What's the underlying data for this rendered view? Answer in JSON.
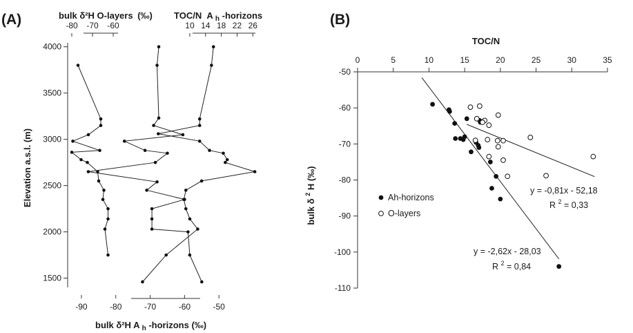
{
  "chart_data": [
    {
      "type": "line",
      "panel_label": "(A)",
      "ylabel": "Elevation a.s.l. (m)",
      "ylim": [
        1400,
        4050
      ],
      "yticks": [
        1500,
        2000,
        2500,
        3000,
        3500,
        4000
      ],
      "axes": {
        "top_left": {
          "title_prefix": "bulk δ²H O-layers",
          "title_unit": "(‰)",
          "ticks": [
            -80,
            -70,
            -60
          ],
          "range": [
            -83,
            -51
          ]
        },
        "top_right": {
          "title_prefix": "TOC/N",
          "title_sub_main": "A",
          "title_sub": "h",
          "title_suffix": "-horizons",
          "ticks": [
            10,
            14,
            18,
            22,
            26
          ],
          "range": [
            -21,
            27
          ]
        },
        "bottom": {
          "title_prefix": "bulk δ²H A",
          "title_sub": "h",
          "title_suffix": "-horizons (‰)",
          "ticks": [
            -90,
            -80,
            -70,
            -60,
            -50
          ],
          "range": [
            -94,
            -39
          ]
        }
      },
      "series": [
        {
          "axis": "top_left",
          "points": [
            {
              "x": -77,
              "y": 3800
            },
            {
              "x": -66,
              "y": 3220
            },
            {
              "x": -66,
              "y": 3150
            },
            {
              "x": -72,
              "y": 3050
            },
            {
              "x": -79.5,
              "y": 2980
            },
            {
              "x": -66.5,
              "y": 2880
            },
            {
              "x": -80,
              "y": 2860
            },
            {
              "x": -75.5,
              "y": 2780
            },
            {
              "x": -72.5,
              "y": 2750
            },
            {
              "x": -67.5,
              "y": 2650
            },
            {
              "x": -67,
              "y": 2550
            },
            {
              "x": -64.5,
              "y": 2450
            },
            {
              "x": -65,
              "y": 2350
            },
            {
              "x": -62.5,
              "y": 2250
            },
            {
              "x": -62.5,
              "y": 2140
            },
            {
              "x": -64,
              "y": 2030
            },
            {
              "x": -62.5,
              "y": 1750
            }
          ]
        },
        {
          "axis": "bottom",
          "points": [
            {
              "x": -55,
              "y": 1460
            },
            {
              "x": -58.5,
              "y": 1750
            },
            {
              "x": -59,
              "y": 2000
            },
            {
              "x": -69.5,
              "y": 2030
            },
            {
              "x": -69.5,
              "y": 2140
            },
            {
              "x": -69.5,
              "y": 2250
            },
            {
              "x": -60,
              "y": 2350
            },
            {
              "x": -71,
              "y": 2450
            },
            {
              "x": -68,
              "y": 2540
            },
            {
              "x": -88,
              "y": 2650
            },
            {
              "x": -68.5,
              "y": 2750
            },
            {
              "x": -65,
              "y": 2850
            },
            {
              "x": -71.5,
              "y": 2880
            },
            {
              "x": -77.5,
              "y": 2980
            },
            {
              "x": -60.5,
              "y": 3050
            },
            {
              "x": -69,
              "y": 3150
            },
            {
              "x": -67.5,
              "y": 3230
            },
            {
              "x": -68,
              "y": 3800
            },
            {
              "x": -67.5,
              "y": 4000
            }
          ]
        },
        {
          "axis": "top_right",
          "points": [
            {
              "x": 16,
              "y": 4000
            },
            {
              "x": 15.5,
              "y": 3800
            },
            {
              "x": 12.5,
              "y": 3220
            },
            {
              "x": 12.5,
              "y": 3150
            },
            {
              "x": 2,
              "y": 3060
            },
            {
              "x": 12.5,
              "y": 2980
            },
            {
              "x": 15,
              "y": 2880
            },
            {
              "x": 18.5,
              "y": 2850
            },
            {
              "x": 19.5,
              "y": 2780
            },
            {
              "x": 19,
              "y": 2750
            },
            {
              "x": 26.5,
              "y": 2650
            },
            {
              "x": 13,
              "y": 2550
            },
            {
              "x": 9,
              "y": 2450
            },
            {
              "x": 8.5,
              "y": 2350
            },
            {
              "x": 9,
              "y": 2250
            },
            {
              "x": 10,
              "y": 2140
            },
            {
              "x": 12,
              "y": 2030
            },
            {
              "x": 4,
              "y": 1750
            },
            {
              "x": -2,
              "y": 1460
            }
          ]
        }
      ]
    },
    {
      "type": "scatter",
      "panel_label": "(B)",
      "xlabel": "TOC/N",
      "ylabel_prefix": "bulk δ",
      "ylabel_sup": "2",
      "ylabel_suffix": "H (‰)",
      "xlim": [
        0,
        35
      ],
      "ylim": [
        -110,
        -50
      ],
      "xticks": [
        0,
        5,
        10,
        15,
        20,
        25,
        30,
        35
      ],
      "yticks": [
        -50,
        -60,
        -70,
        -80,
        -90,
        -100,
        -110
      ],
      "series": [
        {
          "name": "Ah-horizons",
          "marker": "filled",
          "points": [
            [
              10.5,
              -59
            ],
            [
              12.8,
              -60.5
            ],
            [
              12.9,
              -61
            ],
            [
              13.6,
              -64.3
            ],
            [
              13.7,
              -68.5
            ],
            [
              14.4,
              -68.5
            ],
            [
              14.8,
              -68.8
            ],
            [
              15,
              -68
            ],
            [
              15.3,
              -63
            ],
            [
              15.9,
              -72.2
            ],
            [
              16.6,
              -69.6
            ],
            [
              16.9,
              -70.4
            ],
            [
              17,
              -71
            ],
            [
              17.1,
              -63.5
            ],
            [
              17.2,
              -64
            ],
            [
              18.6,
              -75
            ],
            [
              18.8,
              -82.3
            ],
            [
              19.4,
              -79
            ],
            [
              20,
              -85.3
            ],
            [
              28.2,
              -104
            ]
          ],
          "fit": {
            "slope": -2.62,
            "intercept": -28.03,
            "x_range": [
              9,
              28.2
            ]
          },
          "equation": "y = -2,62x - 28,03",
          "r2_prefix": "R",
          "r2_sup": "2",
          "r2_value": " = 0,84"
        },
        {
          "name": "O-layers",
          "marker": "open",
          "points": [
            [
              15.8,
              -59.8
            ],
            [
              17.1,
              -59.5
            ],
            [
              19.7,
              -62
            ],
            [
              16.7,
              -63
            ],
            [
              17.8,
              -63.5
            ],
            [
              17.5,
              -64
            ],
            [
              18.4,
              -64.8
            ],
            [
              16.5,
              -69
            ],
            [
              18.2,
              -68.8
            ],
            [
              19.6,
              -69.1
            ],
            [
              20.4,
              -69.1
            ],
            [
              19.7,
              -70.8
            ],
            [
              24.2,
              -68.2
            ],
            [
              18.4,
              -73.5
            ],
            [
              20.4,
              -74.5
            ],
            [
              21,
              -79
            ],
            [
              26.4,
              -78.8
            ],
            [
              33,
              -73.5
            ]
          ],
          "fit": {
            "slope": -0.81,
            "intercept": -52.18,
            "x_range": [
              15.3,
              33.2
            ]
          },
          "equation": "y = -0,81x - 52,18",
          "r2_prefix": "R",
          "r2_sup": "2",
          "r2_value": " = 0,33"
        }
      ],
      "legend": "left-center"
    }
  ]
}
